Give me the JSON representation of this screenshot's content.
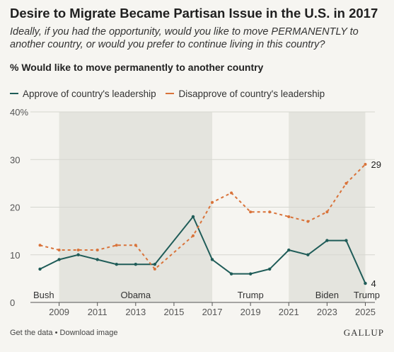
{
  "title": "Desire to Migrate Became Partisan Issue in the U.S. in 2017",
  "subtitle": "Ideally, if you had the opportunity, would you like to move PERMANENTLY to another country, or would you prefer to continue living in this country?",
  "measure_label": "% Would like to move permanently to another country",
  "footer": {
    "links": "Get the data • Download image",
    "brand": "GALLUP"
  },
  "chart_data": {
    "type": "line",
    "x": [
      2008,
      2009,
      2010,
      2011,
      2012,
      2013,
      2014,
      2016,
      2017,
      2018,
      2019,
      2020,
      2021,
      2022,
      2023,
      2024,
      2025
    ],
    "series": [
      {
        "name": "Approve of country's leadership",
        "color": "#1f5c58",
        "style": "solid",
        "values": [
          7,
          9,
          10,
          9,
          8,
          8,
          8,
          18,
          9,
          6,
          6,
          7,
          11,
          10,
          13,
          13,
          4
        ],
        "end_label": "4"
      },
      {
        "name": "Disapprove of country's leadership",
        "color": "#d9733a",
        "style": "dashed",
        "values": [
          12,
          11,
          11,
          11,
          12,
          12,
          7,
          14,
          21,
          23,
          19,
          19,
          18,
          17,
          19,
          25,
          29
        ],
        "end_label": "29"
      }
    ],
    "xticks": [
      "2009",
      "2011",
      "2013",
      "2015",
      "2017",
      "2019",
      "2021",
      "2023",
      "2025"
    ],
    "yticks": [
      "0",
      "10",
      "20",
      "30",
      "40%"
    ],
    "ylim": [
      0,
      40
    ],
    "xlim": [
      2007.5,
      2025.5
    ],
    "presidencies": [
      {
        "name": "Bush",
        "start": 2007.5,
        "end": 2009,
        "shaded": false
      },
      {
        "name": "Obama",
        "start": 2009,
        "end": 2017,
        "shaded": true
      },
      {
        "name": "Trump",
        "start": 2017,
        "end": 2021,
        "shaded": false
      },
      {
        "name": "Biden",
        "start": 2021,
        "end": 2025,
        "shaded": true
      },
      {
        "name": "Trump",
        "start": 2025,
        "end": 2025.5,
        "shaded": false
      }
    ],
    "grid": true,
    "legend_position": "top-left"
  }
}
